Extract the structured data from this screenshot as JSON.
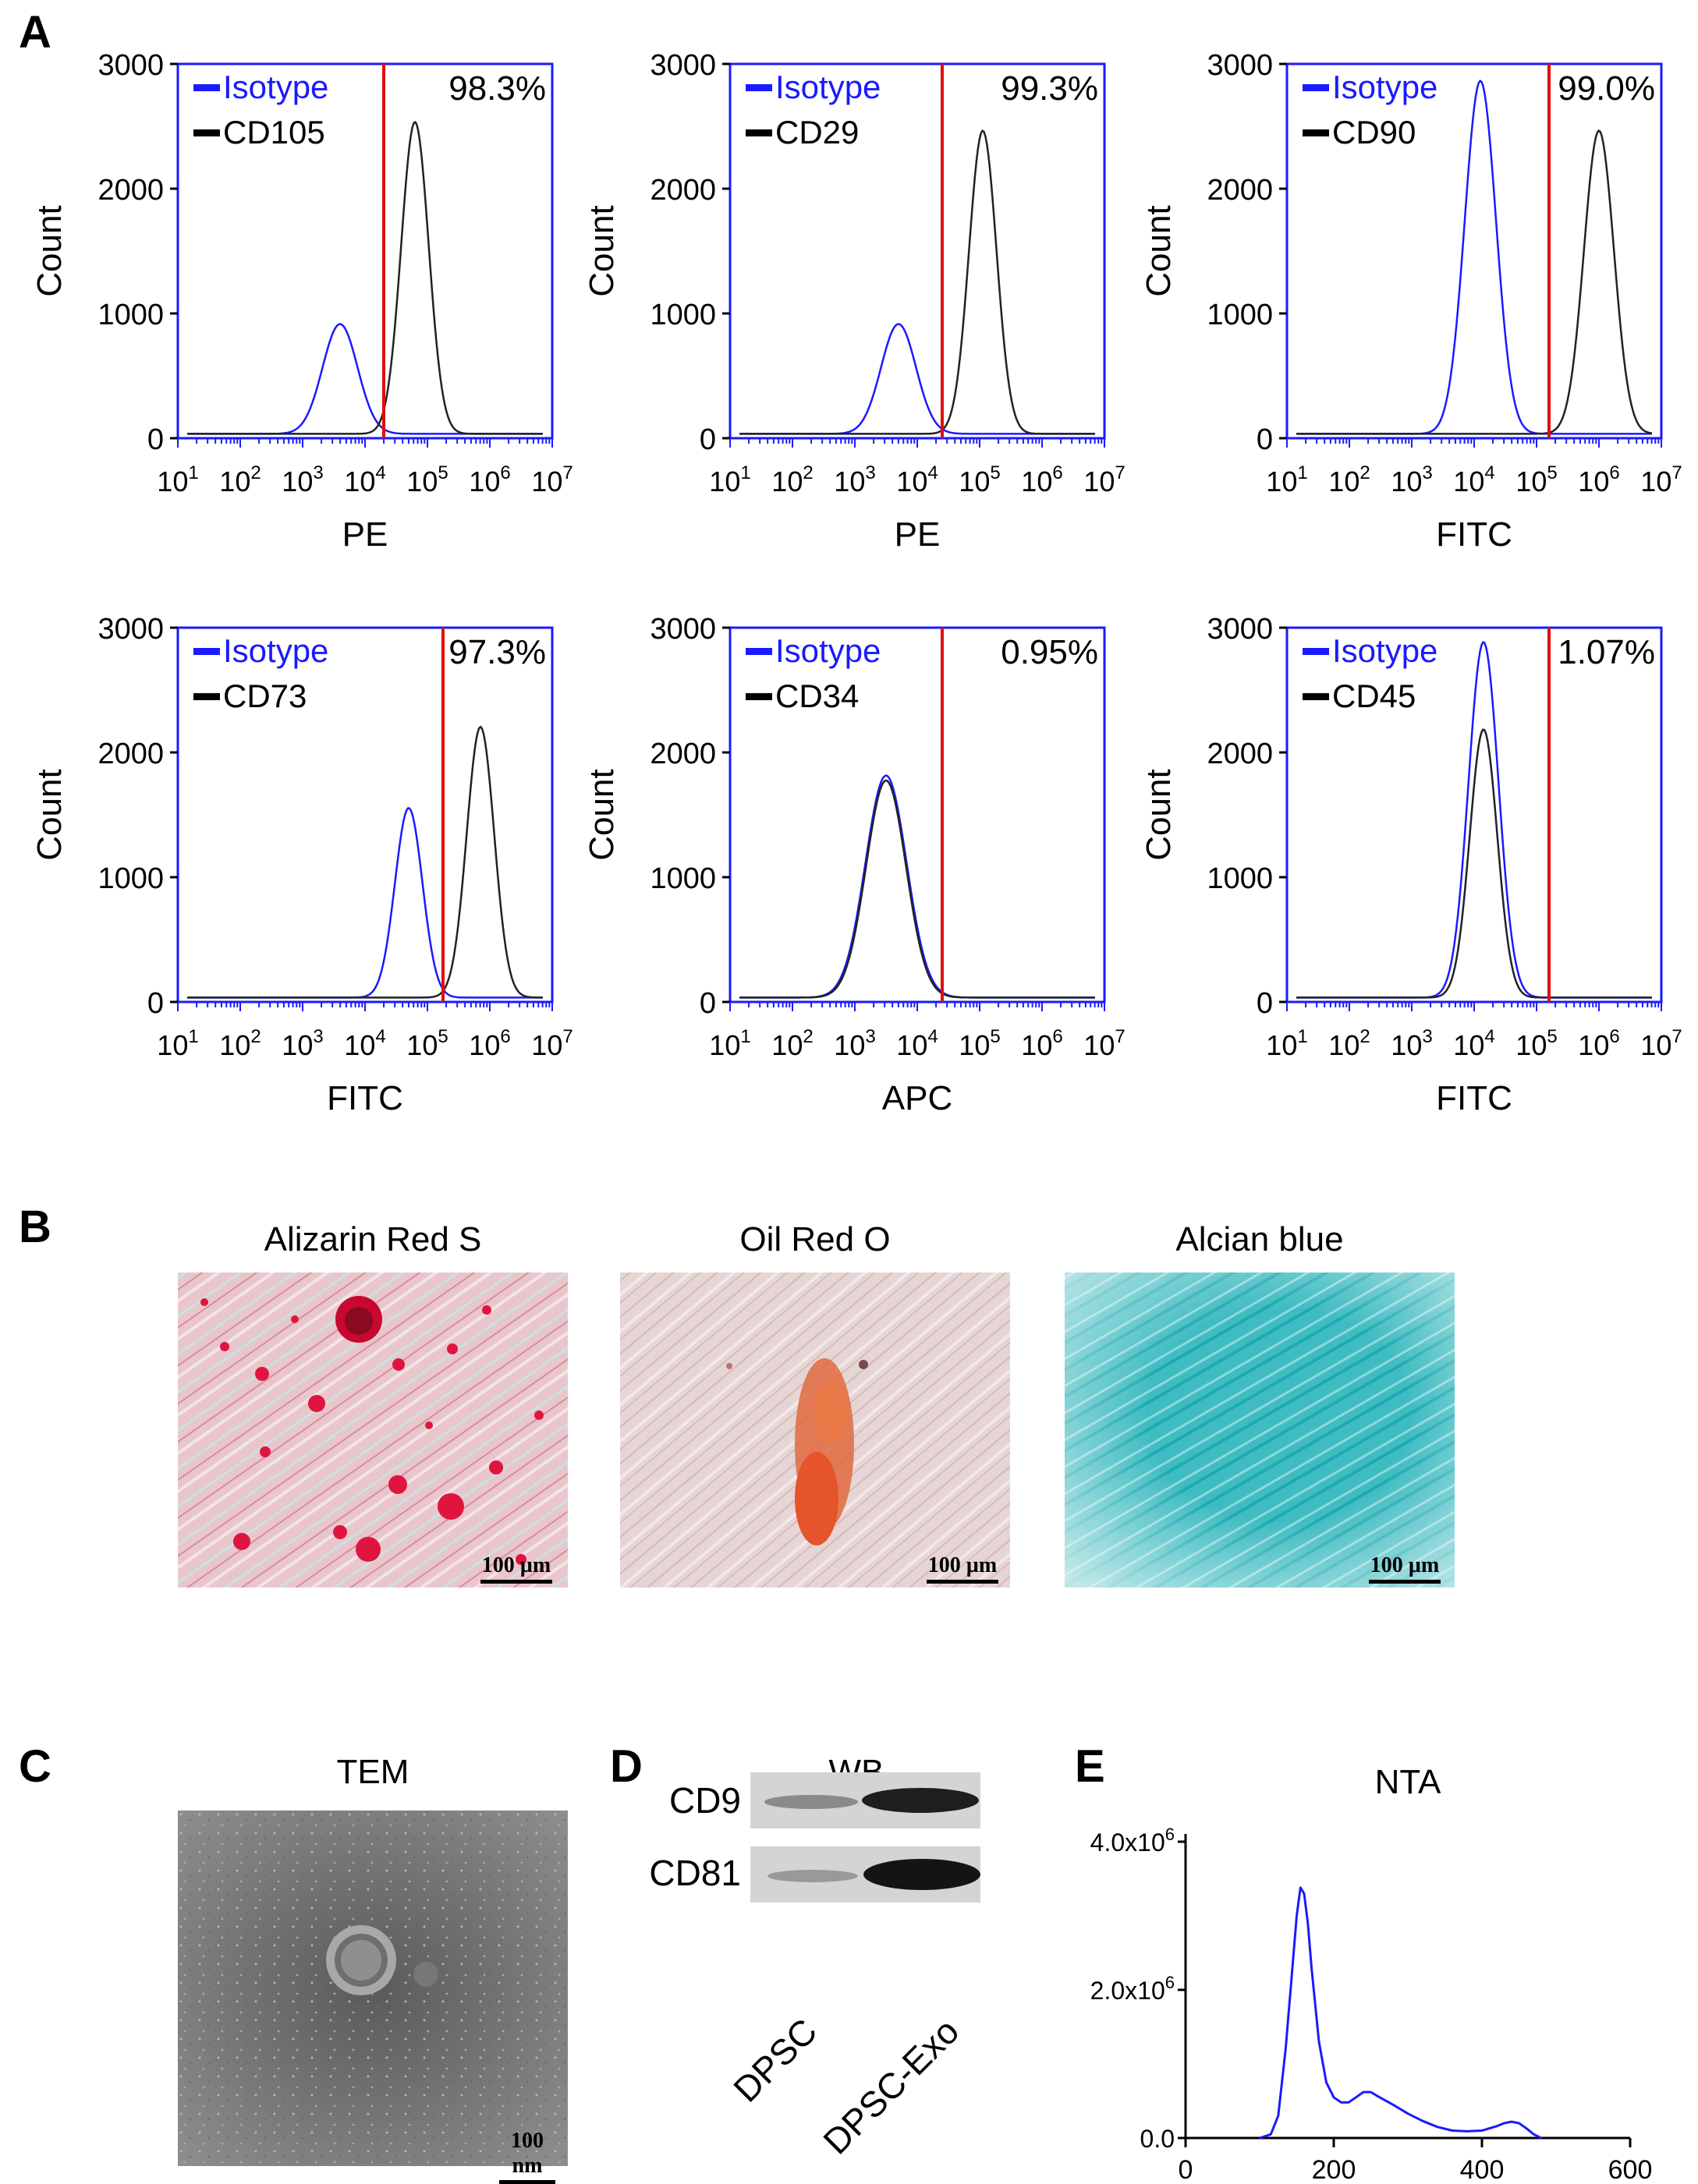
{
  "panel_labels": {
    "a": "A",
    "b": "B",
    "c": "C",
    "d": "D",
    "e": "E"
  },
  "flow": {
    "y_label": "Count",
    "y_ticks": [
      "0",
      "1000",
      "2000",
      "3000"
    ],
    "x_tick_base": "10",
    "x_tick_exps": [
      "1",
      "2",
      "3",
      "4",
      "5",
      "6",
      "7"
    ],
    "legend_isotype": "Isotype",
    "colors": {
      "isotype": "#1a1aff",
      "marker": "#222222",
      "gate": "#e01010",
      "frame": "#1a1aff"
    }
  },
  "chart_data": [
    {
      "type": "line",
      "title": "",
      "marker": "CD105",
      "xlabel": "PE",
      "ylabel": "Count",
      "percent": "98.3%",
      "ylim": [
        0,
        3000
      ],
      "xlim_log10": [
        1,
        7
      ],
      "gate_log10": 4.3,
      "series": [
        {
          "name": "Isotype",
          "peak_log10": 3.6,
          "peak_count": 880,
          "width": 0.28
        },
        {
          "name": "CD105",
          "peak_log10": 4.8,
          "peak_count": 2500,
          "width": 0.22
        }
      ]
    },
    {
      "type": "line",
      "title": "",
      "marker": "CD29",
      "xlabel": "PE",
      "ylabel": "Count",
      "percent": "99.3%",
      "ylim": [
        0,
        3000
      ],
      "xlim_log10": [
        1,
        7
      ],
      "gate_log10": 4.4,
      "series": [
        {
          "name": "Isotype",
          "peak_log10": 3.7,
          "peak_count": 880,
          "width": 0.28
        },
        {
          "name": "CD29",
          "peak_log10": 5.05,
          "peak_count": 2430,
          "width": 0.22
        }
      ]
    },
    {
      "type": "line",
      "title": "",
      "marker": "CD90",
      "xlabel": "FITC",
      "ylabel": "Count",
      "percent": "99.0%",
      "ylim": [
        0,
        3000
      ],
      "xlim_log10": [
        1,
        7
      ],
      "gate_log10": 5.2,
      "series": [
        {
          "name": "Isotype",
          "peak_log10": 4.1,
          "peak_count": 2830,
          "width": 0.25
        },
        {
          "name": "CD90",
          "peak_log10": 6.0,
          "peak_count": 2430,
          "width": 0.24
        }
      ]
    },
    {
      "type": "line",
      "title": "",
      "marker": "CD73",
      "xlabel": "FITC",
      "ylabel": "Count",
      "percent": "97.3%",
      "ylim": [
        0,
        3000
      ],
      "xlim_log10": [
        1,
        7
      ],
      "gate_log10": 5.25,
      "series": [
        {
          "name": "Isotype",
          "peak_log10": 4.7,
          "peak_count": 1520,
          "width": 0.22
        },
        {
          "name": "CD73",
          "peak_log10": 5.85,
          "peak_count": 2170,
          "width": 0.22
        }
      ]
    },
    {
      "type": "line",
      "title": "",
      "marker": "CD34",
      "xlabel": "APC",
      "ylabel": "Count",
      "percent": "0.95%",
      "ylim": [
        0,
        3000
      ],
      "xlim_log10": [
        1,
        7
      ],
      "gate_log10": 4.4,
      "series": [
        {
          "name": "Isotype",
          "peak_log10": 3.5,
          "peak_count": 1780,
          "width": 0.33
        },
        {
          "name": "CD34",
          "peak_log10": 3.5,
          "peak_count": 1740,
          "width": 0.32
        }
      ]
    },
    {
      "type": "line",
      "title": "",
      "marker": "CD45",
      "xlabel": "FITC",
      "ylabel": "Count",
      "percent": "1.07%",
      "ylim": [
        0,
        3000
      ],
      "xlim_log10": [
        1,
        7
      ],
      "gate_log10": 5.2,
      "series": [
        {
          "name": "Isotype",
          "peak_log10": 4.15,
          "peak_count": 2850,
          "width": 0.24
        },
        {
          "name": "CD45",
          "peak_log10": 4.15,
          "peak_count": 2150,
          "width": 0.22
        }
      ]
    },
    {
      "type": "line",
      "title": "NTA",
      "xlabel": "",
      "ylabel": "",
      "x_ticks": [
        "0",
        "200",
        "400",
        "600"
      ],
      "y_ticks": [
        "0.0",
        "2.0x10",
        "4.0x10"
      ],
      "y_tick_exp": "6",
      "xlim": [
        0,
        600
      ],
      "ylim": [
        0,
        4000000
      ],
      "color": "#1a1aff",
      "series": [
        {
          "name": "NTA",
          "x": [
            100,
            115,
            125,
            135,
            145,
            150,
            155,
            160,
            165,
            170,
            180,
            190,
            200,
            210,
            220,
            230,
            240,
            250,
            260,
            280,
            300,
            320,
            340,
            360,
            380,
            400,
            420,
            430,
            440,
            450,
            460,
            470,
            480
          ],
          "y": [
            0,
            50000,
            300000,
            1200000,
            2400000,
            3000000,
            3380000,
            3300000,
            2900000,
            2300000,
            1300000,
            750000,
            550000,
            480000,
            480000,
            550000,
            620000,
            620000,
            560000,
            450000,
            330000,
            230000,
            150000,
            100000,
            90000,
            100000,
            160000,
            200000,
            220000,
            200000,
            130000,
            50000,
            0
          ]
        }
      ]
    }
  ],
  "staining": {
    "titles": [
      "Alizarin Red S",
      "Oil Red O",
      "Alcian blue"
    ],
    "scale_label": "100 µm"
  },
  "tem": {
    "title": "TEM",
    "scale_label": "100 nm"
  },
  "wb": {
    "title": "WB",
    "bands": [
      "CD9",
      "CD81"
    ],
    "lanes": [
      "DPSC",
      "DPSC-Exo"
    ]
  }
}
